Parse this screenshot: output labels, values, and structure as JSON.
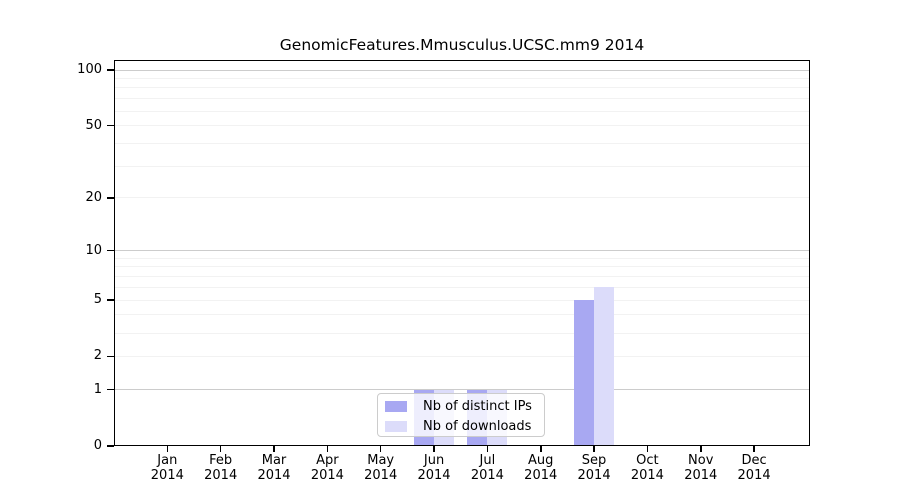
{
  "chart_data": {
    "type": "bar",
    "title": "GenomicFeatures.Mmusculus.UCSC.mm9 2014",
    "categories": [
      "Jan",
      "Feb",
      "Mar",
      "Apr",
      "May",
      "Jun",
      "Jul",
      "Aug",
      "Sep",
      "Oct",
      "Nov",
      "Dec"
    ],
    "x_tick_year": "2014",
    "series": [
      {
        "name": "Nb of distinct IPs",
        "color": "#a8a8f2",
        "values": [
          0,
          0,
          0,
          0,
          0,
          1,
          1,
          0,
          5,
          0,
          0,
          0
        ]
      },
      {
        "name": "Nb of downloads",
        "color": "#dcdcfa",
        "values": [
          0,
          0,
          0,
          0,
          0,
          1,
          1,
          0,
          6,
          0,
          0,
          0
        ]
      }
    ],
    "ylabel": "",
    "xlabel": "",
    "yscale": "log1p",
    "ylim": [
      0,
      113
    ],
    "ytick_labels": [
      "0",
      "1",
      "2",
      "5",
      "10",
      "20",
      "50",
      "100"
    ],
    "ytick_values": [
      0,
      1,
      2,
      5,
      10,
      20,
      50,
      100
    ],
    "major_gridline_values": [
      1,
      10,
      100
    ],
    "minor_gridline_values": [
      2,
      3,
      4,
      5,
      6,
      7,
      8,
      9,
      20,
      30,
      40,
      50,
      60,
      70,
      80,
      90
    ],
    "legend_position": "lower center",
    "grid_on": true,
    "colors": {
      "major_grid": "#cccccc",
      "minor_grid": "#f2f2f2",
      "axis": "#000000",
      "background": "#ffffff"
    }
  }
}
